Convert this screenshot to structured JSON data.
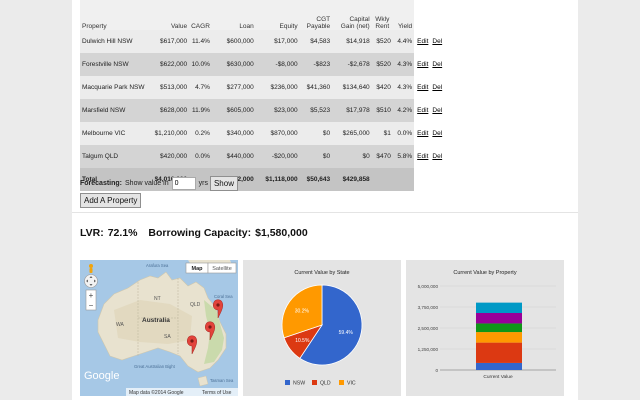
{
  "table": {
    "headers": {
      "property": "Property",
      "value": "Value",
      "cagr": "CAGR",
      "loan": "Loan",
      "equity": "Equity",
      "cgt": "CGT Payable",
      "cgain": "Capital Gain (net)",
      "rent": "Wkly Rent",
      "yield": "Yield"
    },
    "rows": [
      {
        "property": "Dulwich Hill NSW",
        "value": "$617,000",
        "cagr": "11.4%",
        "loan": "$600,000",
        "equity": "$17,000",
        "cgt": "$4,583",
        "cgain": "$14,918",
        "rent": "$520",
        "yield": "4.4%"
      },
      {
        "property": "Forestville NSW",
        "value": "$622,000",
        "cagr": "10.0%",
        "loan": "$630,000",
        "equity": "-$8,000",
        "cgt": "-$823",
        "cgain": "-$2,678",
        "rent": "$520",
        "yield": "4.3%"
      },
      {
        "property": "Macquarie Park NSW",
        "value": "$513,000",
        "cagr": "4.7%",
        "loan": "$277,000",
        "equity": "$236,000",
        "cgt": "$41,360",
        "cgain": "$134,640",
        "rent": "$420",
        "yield": "4.3%"
      },
      {
        "property": "Marsfield NSW",
        "value": "$628,000",
        "cagr": "11.9%",
        "loan": "$605,000",
        "equity": "$23,000",
        "cgt": "$5,523",
        "cgain": "$17,978",
        "rent": "$510",
        "yield": "4.2%"
      },
      {
        "property": "Melbourne VIC",
        "value": "$1,210,000",
        "cagr": "0.2%",
        "loan": "$340,000",
        "equity": "$870,000",
        "cgt": "$0",
        "cgain": "$265,000",
        "rent": "$1",
        "yield": "0.0%"
      },
      {
        "property": "Talgum QLD",
        "value": "$420,000",
        "cagr": "0.0%",
        "loan": "$440,000",
        "equity": "-$20,000",
        "cgt": "$0",
        "cgain": "$0",
        "rent": "$470",
        "yield": "5.8%"
      }
    ],
    "edit_label": "Edit",
    "del_label": "Del",
    "total": {
      "label": "Total",
      "value": "$4,010,000",
      "loan": "$2,892,000",
      "equity": "$1,118,000",
      "cgt": "$50,643",
      "cgain": "$429,858"
    }
  },
  "forecast": {
    "label": "Forecasting:",
    "text": "Show value in",
    "value": "0",
    "unit": "yrs",
    "button": "Show"
  },
  "add_button": "Add A Property",
  "summary": {
    "lvr_label": "LVR:",
    "lvr_value": "72.1%",
    "bc_label": "Borrowing Capacity:",
    "bc_value": "$1,580,000"
  },
  "map": {
    "map_button": "Map",
    "satellite_button": "Satellite",
    "labels": {
      "australia": "Australia",
      "nt": "NT",
      "qld": "QLD",
      "wa": "WA",
      "sa": "SA",
      "coral_sea": "Coral Sea",
      "great_australian_bight": "Great Australian Bight",
      "arafura_sea": "Arafura Sea",
      "tasman_sea": "Tasman Sea"
    },
    "google": "Google",
    "attribution": "Map data ©2014 Google",
    "terms": "Terms of Use",
    "zoom_in": "+",
    "zoom_out": "−",
    "icons": [
      "pan-control-icon",
      "zoom-in-icon",
      "zoom-out-icon",
      "pegman-icon",
      "map-marker-icon"
    ]
  },
  "pie": {
    "title": "Current Value by State",
    "slices": [
      {
        "name": "NSW",
        "value": 59.4,
        "label": "59.4%",
        "color": "#3366cc"
      },
      {
        "name": "QLD",
        "value": 10.5,
        "label": "10.5%",
        "color": "#dc3912"
      },
      {
        "name": "VIC",
        "value": 30.2,
        "label": "30.2%",
        "color": "#ff9900"
      }
    ]
  },
  "chart_data": [
    {
      "type": "pie",
      "title": "Current Value by State",
      "categories": [
        "NSW",
        "QLD",
        "VIC"
      ],
      "values": [
        59.4,
        10.5,
        30.2
      ],
      "legend": "bottom"
    },
    {
      "type": "bar",
      "title": "Current Value by Property",
      "categories": [
        "Current Value"
      ],
      "xlabel": "",
      "ylabel": "",
      "ylim": [
        0,
        5000000
      ],
      "yticks": [
        "0",
        "1,250,000",
        "2,500,000",
        "3,750,000",
        "5,000,000"
      ],
      "stacked": true,
      "series": [
        {
          "values": [
            420000
          ],
          "color": "#3366cc"
        },
        {
          "values": [
            1210000
          ],
          "color": "#dc3912"
        },
        {
          "values": [
            628000
          ],
          "color": "#ff9900"
        },
        {
          "values": [
            513000
          ],
          "color": "#109618"
        },
        {
          "values": [
            622000
          ],
          "color": "#990099"
        },
        {
          "values": [
            617000
          ],
          "color": "#0099c6"
        }
      ]
    }
  ]
}
